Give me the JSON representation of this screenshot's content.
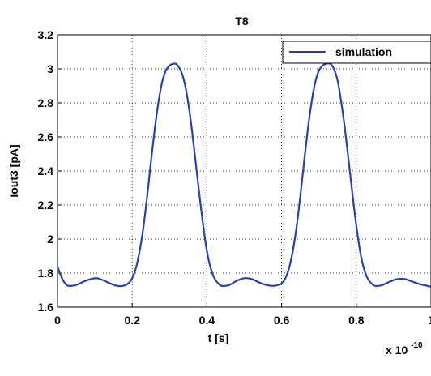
{
  "chart_data": {
    "type": "line",
    "title": "T8",
    "xlabel": "t [s]",
    "ylabel": "Iout3 [pA]",
    "x_multiplier": "x 10",
    "x_multiplier_exponent": "-10",
    "xlim": [
      0,
      1
    ],
    "ylim": [
      1.6,
      3.2
    ],
    "xticks": [
      0,
      0.2,
      0.4,
      0.6,
      0.8,
      1
    ],
    "xtick_labels": [
      "0",
      "0.2",
      "0.4",
      "0.6",
      "0.8",
      "1"
    ],
    "yticks": [
      1.6,
      1.8,
      2.0,
      2.2,
      2.4,
      2.6,
      2.8,
      3.0,
      3.2
    ],
    "ytick_labels": [
      "1.6",
      "1.8",
      "2",
      "2.2",
      "2.4",
      "2.6",
      "2.8",
      "3",
      "3.2"
    ],
    "grid": true,
    "legend_position": "top-right",
    "series": [
      {
        "name": "simulation",
        "color": "#2b3fb5",
        "x": [
          0,
          0.01,
          0.02,
          0.03,
          0.05,
          0.07,
          0.09,
          0.105,
          0.12,
          0.14,
          0.16,
          0.175,
          0.19,
          0.2,
          0.21,
          0.22,
          0.23,
          0.24,
          0.25,
          0.26,
          0.27,
          0.28,
          0.29,
          0.3,
          0.31,
          0.315,
          0.32,
          0.33,
          0.34,
          0.35,
          0.36,
          0.37,
          0.38,
          0.39,
          0.4,
          0.41,
          0.42,
          0.43,
          0.44,
          0.46,
          0.48,
          0.5,
          0.52,
          0.54,
          0.56,
          0.58,
          0.6,
          0.61,
          0.62,
          0.63,
          0.64,
          0.65,
          0.66,
          0.67,
          0.68,
          0.69,
          0.7,
          0.71,
          0.72,
          0.73,
          0.74,
          0.75,
          0.76,
          0.77,
          0.78,
          0.79,
          0.8,
          0.81,
          0.82,
          0.83,
          0.84,
          0.85,
          0.86,
          0.87,
          0.89,
          0.91,
          0.93,
          0.95,
          0.97,
          0.99,
          1.0
        ],
        "y": [
          1.84,
          1.78,
          1.74,
          1.725,
          1.73,
          1.75,
          1.765,
          1.77,
          1.76,
          1.74,
          1.725,
          1.725,
          1.74,
          1.77,
          1.83,
          1.93,
          2.07,
          2.25,
          2.45,
          2.64,
          2.8,
          2.92,
          2.99,
          3.02,
          3.03,
          3.03,
          3.025,
          2.99,
          2.92,
          2.8,
          2.64,
          2.45,
          2.26,
          2.08,
          1.93,
          1.83,
          1.77,
          1.74,
          1.725,
          1.73,
          1.755,
          1.77,
          1.765,
          1.745,
          1.73,
          1.725,
          1.74,
          1.77,
          1.83,
          1.93,
          2.07,
          2.25,
          2.45,
          2.64,
          2.8,
          2.92,
          2.99,
          3.02,
          3.03,
          3.03,
          3.0,
          2.93,
          2.8,
          2.64,
          2.45,
          2.26,
          2.08,
          1.93,
          1.83,
          1.77,
          1.74,
          1.725,
          1.725,
          1.73,
          1.75,
          1.765,
          1.765,
          1.75,
          1.735,
          1.725,
          1.72
        ]
      }
    ]
  }
}
